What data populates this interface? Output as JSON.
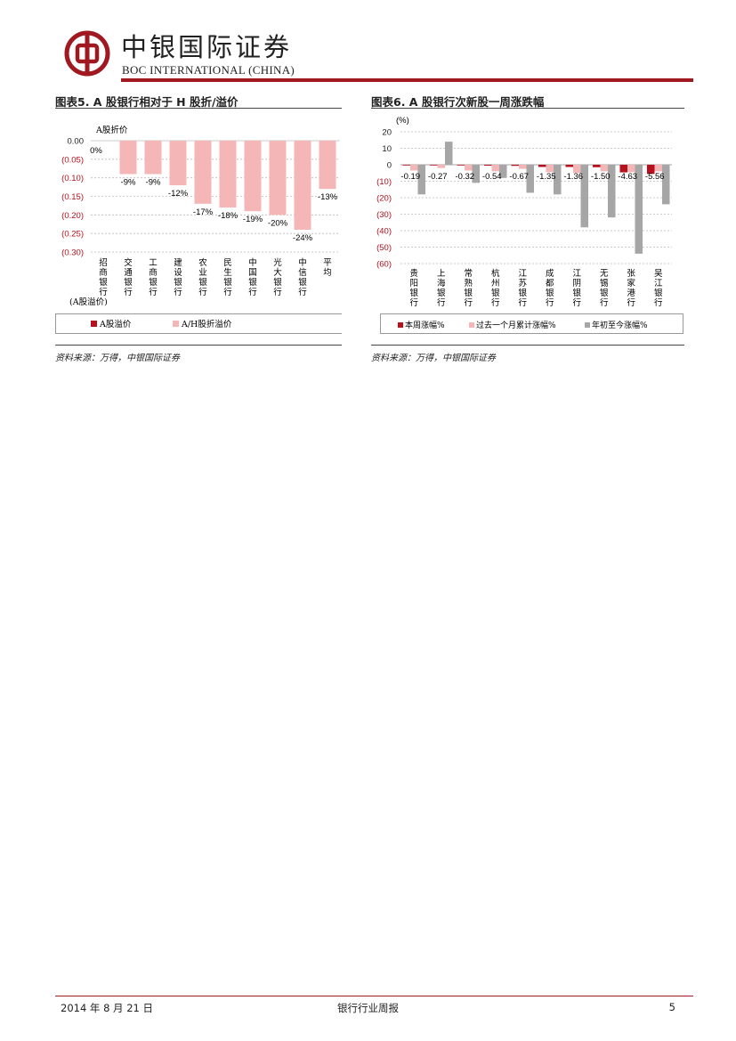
{
  "header": {
    "brand_cn": "中银国际证券",
    "brand_en": "BOC INTERNATIONAL (CHINA)",
    "accent_color": "#a01820"
  },
  "figures": [
    {
      "title": "图表5. A 股银行相对于 H 股折/溢价",
      "source": "资料来源：万得，中银国际证券"
    },
    {
      "title": "图表6. A 股银行次新股一周涨跌幅",
      "source": "资料来源：万得，中银国际证券"
    }
  ],
  "chart_data": [
    {
      "type": "bar",
      "title": "",
      "ylabel_top": "A股折价",
      "ylabel_bottom": "(A股溢价)",
      "ylim": [
        -0.3,
        0.0
      ],
      "yticks": [
        0.0,
        -0.05,
        -0.1,
        -0.15,
        -0.2,
        -0.25,
        -0.3
      ],
      "ytick_labels": [
        "0.00",
        "(0.05)",
        "(0.10)",
        "(0.15)",
        "(0.20)",
        "(0.25)",
        "(0.30)"
      ],
      "categories": [
        "招商银行",
        "交通银行",
        "工商银行",
        "建设银行",
        "农业银行",
        "民生银行",
        "中国银行",
        "光大银行",
        "中信银行",
        "平均"
      ],
      "series": [
        {
          "name": "A股溢价",
          "color": "#b8101c",
          "values": [
            0,
            0,
            0,
            0,
            0,
            0,
            0,
            0,
            0,
            0
          ]
        },
        {
          "name": "A/H股折溢价",
          "color": "#f4b6b6",
          "values": [
            0.0,
            -0.09,
            -0.09,
            -0.12,
            -0.17,
            -0.18,
            -0.19,
            -0.2,
            -0.24,
            -0.13
          ]
        }
      ],
      "data_labels": [
        "0%",
        "-9%",
        "-9%",
        "-12%",
        "-17%",
        "-18%",
        "-19%",
        "-20%",
        "-24%",
        "-13%"
      ],
      "grid": true,
      "legend": "bottom"
    },
    {
      "type": "bar",
      "title": "",
      "ylabel": "(%)",
      "ylim": [
        -60,
        20
      ],
      "yticks": [
        20,
        10,
        0,
        -10,
        -20,
        -30,
        -40,
        -50,
        -60
      ],
      "ytick_labels": [
        "20",
        "10",
        "0",
        "(10)",
        "(20)",
        "(30)",
        "(40)",
        "(50)",
        "(60)"
      ],
      "categories": [
        "贵阳银行",
        "上海银行",
        "常熟银行",
        "杭州银行",
        "江苏银行",
        "成都银行",
        "江阴银行",
        "无锡银行",
        "张家港行",
        "吴江银行"
      ],
      "series": [
        {
          "name": "本周涨幅%",
          "color": "#b8101c",
          "values": [
            -0.19,
            -0.27,
            -0.32,
            -0.54,
            -0.67,
            -1.35,
            -1.36,
            -1.5,
            -4.63,
            -5.56
          ]
        },
        {
          "name": "过去一个月累计涨幅%",
          "color": "#f4b6b6",
          "values": [
            -3.5,
            -2.0,
            -3.5,
            -4.0,
            -2.5,
            -4.5,
            -5.0,
            -4.0,
            -4.5,
            -4.0
          ]
        },
        {
          "name": "年初至今涨幅%",
          "color": "#a6a6a6",
          "values": [
            -18,
            14,
            -11,
            -8,
            -17,
            -18,
            -38,
            -32,
            -54,
            -24
          ]
        }
      ],
      "data_labels": [
        "-0.19",
        "-0.27",
        "-0.32",
        "-0.54",
        "-0.67",
        "-1.35",
        "-1.36",
        "-1.50",
        "-4.63",
        "-5.56"
      ],
      "grid": true,
      "legend": "bottom"
    }
  ],
  "footer": {
    "date": "2014 年 8 月 21 日",
    "report_title": "银行行业周报",
    "page": "5"
  }
}
